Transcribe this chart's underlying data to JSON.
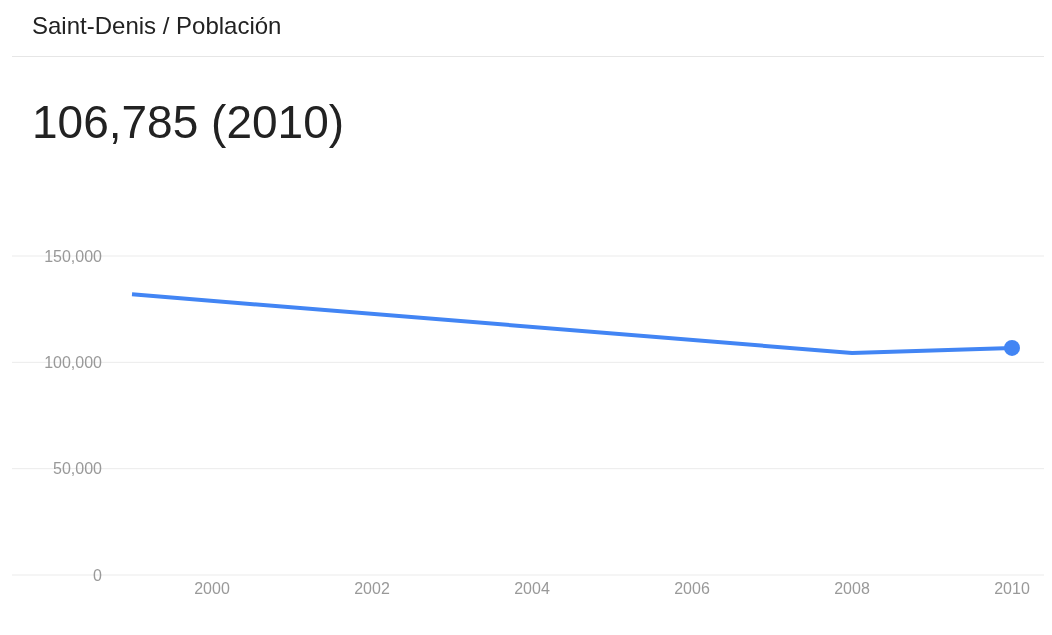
{
  "chart_data": {
    "type": "line",
    "title": "Saint-Denis / Población",
    "annotations": [
      "106,785 (2010)"
    ],
    "x": [
      1999,
      2008,
      2010
    ],
    "series": [
      {
        "color": "#4285f4",
        "values": [
          132000,
          104400,
          106785
        ]
      },
      {
        "type": "scatter",
        "x": [
          2010
        ],
        "color": "#4285f4",
        "values": [
          106785
        ]
      }
    ],
    "xlim": [
      1997.5,
      2010.4
    ],
    "xticks": [
      {
        "value": 2000,
        "label": "2000"
      },
      {
        "value": 2002,
        "label": "2002"
      },
      {
        "value": 2004,
        "label": "2004"
      },
      {
        "value": 2006,
        "label": "2006"
      },
      {
        "value": 2008,
        "label": "2008"
      },
      {
        "value": 2010,
        "label": "2010"
      }
    ],
    "ylim": [
      0,
      150000
    ],
    "yticks": [
      {
        "value": 0,
        "label": "0"
      },
      {
        "value": 50000,
        "label": "50,000"
      },
      {
        "value": 100000,
        "label": "100,000"
      },
      {
        "value": 150000,
        "label": "150,000"
      }
    ],
    "grid": "y",
    "line_style": "solid"
  }
}
